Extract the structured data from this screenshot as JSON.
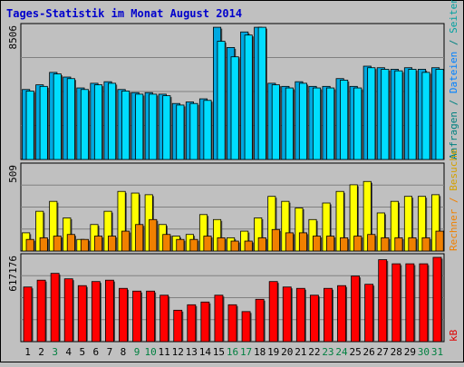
{
  "chart_data": {
    "type": "bar",
    "title": "Tages-Statistik im Monat August 2014",
    "colors": {
      "title": "#0000cc",
      "background": "#c0c0c0",
      "anfragen": "#008080",
      "dateien": "#0080ff",
      "seiten": "#00a0a0",
      "besuche": "#d4a000",
      "rechner": "#f08000",
      "kb": "#e00000",
      "bar_cyan": "#00ddff",
      "bar_blue": "#00a8e0",
      "bar_yellow": "#ffff00",
      "bar_orange": "#f08000",
      "bar_red": "#ff0000",
      "weekend_label": "#008040",
      "weekday_label": "#000000"
    },
    "x": {
      "days": [
        "1",
        "2",
        "3",
        "4",
        "5",
        "6",
        "7",
        "8",
        "9",
        "10",
        "11",
        "12",
        "13",
        "14",
        "15",
        "16",
        "17",
        "18",
        "19",
        "20",
        "21",
        "22",
        "23",
        "24",
        "25",
        "26",
        "27",
        "28",
        "29",
        "30",
        "31"
      ],
      "weekend": [
        false,
        false,
        true,
        false,
        false,
        false,
        false,
        false,
        true,
        true,
        false,
        false,
        false,
        false,
        false,
        true,
        true,
        false,
        false,
        false,
        false,
        false,
        true,
        true,
        false,
        false,
        false,
        false,
        false,
        true,
        true
      ]
    },
    "panels": [
      {
        "ylabel": "8506",
        "right_labels": [
          {
            "text": "Anfragen",
            "color": "anfragen"
          },
          {
            "text": " / ",
            "color": "anfragen"
          },
          {
            "text": "Dateien",
            "color": "dateien"
          },
          {
            "text": " / ",
            "color": "anfragen"
          },
          {
            "text": "Seiten",
            "color": "seiten"
          }
        ],
        "ymax": 8506,
        "series": [
          {
            "name": "Anfragen",
            "color": "bar_blue",
            "values": [
              4500,
              4800,
              5600,
              5300,
              4600,
              4900,
              5000,
              4500,
              4300,
              4300,
              4200,
              3600,
              3700,
              3900,
              8500,
              7200,
              8200,
              8500,
              4900,
              4700,
              5000,
              4700,
              4700,
              5200,
              4700,
              6000,
              5900,
              5800,
              5900,
              5800,
              5900
            ]
          },
          {
            "name": "Dateien",
            "color": "bar_cyan",
            "values": [
              4400,
              4700,
              5500,
              5200,
              4500,
              4800,
              4900,
              4400,
              4200,
              4200,
              4100,
              3500,
              3600,
              3800,
              7600,
              6600,
              8000,
              8500,
              4800,
              4600,
              4900,
              4600,
              4600,
              5100,
              4600,
              5900,
              5800,
              5700,
              5800,
              5600,
              5800
            ]
          }
        ]
      },
      {
        "ylabel": "509",
        "right_labels": [
          {
            "text": "Rechner",
            "color": "rechner"
          },
          {
            "text": " / ",
            "color": "rechner"
          },
          {
            "text": "Besuche",
            "color": "besuche"
          }
        ],
        "ymax": 509,
        "series": [
          {
            "name": "Besuche",
            "color": "bar_yellow",
            "values": [
              110,
              240,
              300,
              200,
              70,
              160,
              240,
              360,
              350,
              340,
              160,
              90,
              100,
              220,
              190,
              80,
              120,
              200,
              330,
              300,
              260,
              190,
              290,
              360,
              400,
              420,
              230,
              300,
              330,
              330,
              340
            ]
          },
          {
            "name": "Rechner",
            "color": "bar_orange",
            "values": [
              70,
              80,
              90,
              100,
              70,
              90,
              90,
              120,
              160,
              190,
              100,
              70,
              70,
              90,
              80,
              60,
              60,
              80,
              130,
              110,
              110,
              90,
              90,
              80,
              90,
              100,
              80,
              80,
              80,
              80,
              120
            ]
          }
        ]
      },
      {
        "ylabel": "617176",
        "right_labels": [
          {
            "text": "kB",
            "color": "kb"
          }
        ],
        "ymax": 617176,
        "series": [
          {
            "name": "kB",
            "color": "bar_red",
            "values": [
              400000,
              450000,
              500000,
              460000,
              410000,
              440000,
              450000,
              390000,
              370000,
              370000,
              340000,
              230000,
              270000,
              290000,
              340000,
              270000,
              220000,
              310000,
              440000,
              400000,
              390000,
              340000,
              390000,
              410000,
              480000,
              420000,
              600000,
              570000,
              570000,
              570000,
              617176
            ]
          }
        ]
      }
    ]
  }
}
